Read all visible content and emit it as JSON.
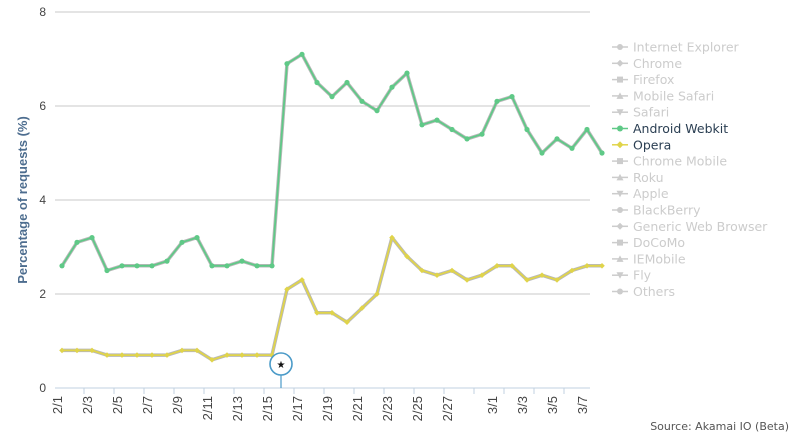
{
  "chart_data": {
    "type": "line",
    "ylabel": "Percentage of requests (%)",
    "ylim": [
      0,
      8
    ],
    "yticks": [
      "0",
      "2",
      "4",
      "6",
      "8"
    ],
    "x": [
      "2/1",
      "2/2",
      "2/3",
      "2/4",
      "2/5",
      "2/6",
      "2/7",
      "2/8",
      "2/9",
      "2/10",
      "2/11",
      "2/12",
      "2/13",
      "2/14",
      "2/15",
      "2/16",
      "2/17",
      "2/18",
      "2/19",
      "2/20",
      "2/21",
      "2/22",
      "2/23",
      "2/24",
      "2/25",
      "2/26",
      "2/27",
      "2/28",
      "2/29",
      "3/1",
      "3/2",
      "3/3",
      "3/4",
      "3/5",
      "3/6",
      "3/7",
      "3/8"
    ],
    "xtick_labels": [
      "2/1",
      "2/3",
      "2/5",
      "2/7",
      "2/9",
      "2/11",
      "2/13",
      "2/15",
      "2/17",
      "2/19",
      "2/21",
      "2/23",
      "2/25",
      "2/27",
      "3/1",
      "3/3",
      "3/5",
      "3/7"
    ],
    "grid": true,
    "legend_position": "right",
    "series": [
      {
        "name": "Android Webkit",
        "color": "#5fc987",
        "visible": true,
        "values": [
          2.6,
          3.1,
          3.2,
          2.5,
          2.6,
          2.6,
          2.6,
          2.7,
          3.1,
          3.2,
          2.6,
          2.6,
          2.7,
          2.6,
          2.6,
          6.9,
          7.1,
          6.5,
          6.2,
          6.5,
          6.1,
          5.9,
          6.4,
          6.7,
          5.6,
          5.7,
          5.5,
          5.3,
          5.4,
          6.1,
          6.2,
          5.5,
          5.0,
          5.3,
          5.1,
          5.5,
          5.0
        ]
      },
      {
        "name": "Opera",
        "color": "#e0d44a",
        "visible": true,
        "values": [
          0.8,
          0.8,
          0.8,
          0.7,
          0.7,
          0.7,
          0.7,
          0.7,
          0.8,
          0.8,
          0.6,
          0.7,
          0.7,
          0.7,
          0.7,
          2.1,
          2.3,
          1.6,
          1.6,
          1.4,
          1.7,
          2.0,
          3.2,
          2.8,
          2.5,
          2.4,
          2.5,
          2.3,
          2.4,
          2.6,
          2.6,
          2.3,
          2.4,
          2.3,
          2.5,
          2.6,
          2.6
        ]
      }
    ],
    "legend": [
      {
        "name": "Internet Explorer",
        "marker": "circle",
        "active": false
      },
      {
        "name": "Chrome",
        "marker": "diamond",
        "active": false
      },
      {
        "name": "Firefox",
        "marker": "square",
        "active": false
      },
      {
        "name": "Mobile Safari",
        "marker": "triangle",
        "active": false
      },
      {
        "name": "Safari",
        "marker": "triangle-down",
        "active": false
      },
      {
        "name": "Android Webkit",
        "marker": "circle",
        "active": true,
        "color": "#5fc987"
      },
      {
        "name": "Opera",
        "marker": "diamond",
        "active": true,
        "color": "#e0d44a"
      },
      {
        "name": "Chrome Mobile",
        "marker": "square",
        "active": false
      },
      {
        "name": "Roku",
        "marker": "triangle",
        "active": false
      },
      {
        "name": "Apple",
        "marker": "triangle-down",
        "active": false
      },
      {
        "name": "BlackBerry",
        "marker": "circle",
        "active": false
      },
      {
        "name": "Generic Web Browser",
        "marker": "diamond",
        "active": false
      },
      {
        "name": "DoCoMo",
        "marker": "square",
        "active": false
      },
      {
        "name": "IEMobile",
        "marker": "triangle",
        "active": false
      },
      {
        "name": "Fly",
        "marker": "triangle-down",
        "active": false
      },
      {
        "name": "Others",
        "marker": "circle",
        "active": false
      }
    ],
    "annotation": {
      "symbol": "★",
      "x": "2/16"
    },
    "source": "Source: Akamai IO (Beta)"
  },
  "colors": {
    "grid": "#c8c8c8",
    "axis": "#c0d0e0",
    "legend_inactive": "#cccccc",
    "legend_active_text": "#2a3e52",
    "annotation": "#4a9ac8"
  }
}
